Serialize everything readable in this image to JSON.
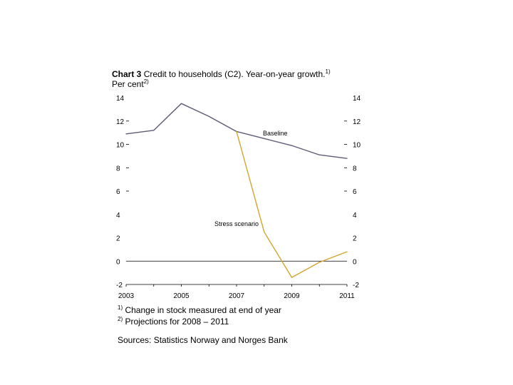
{
  "title": {
    "prefix": "Chart 3",
    "text": "Credit to households (C2). Year-on-year growth.",
    "footnote_ref": "1)"
  },
  "subtitle": {
    "text": "Per cent",
    "footnote_ref": "2)"
  },
  "chart_data": {
    "type": "line",
    "title": "Chart 3 Credit to households (C2). Year-on-year growth.",
    "ylabel": "Per cent",
    "xlabel": "",
    "ylim": [
      -2,
      14
    ],
    "xlim": [
      2003,
      2011
    ],
    "y_ticks": [
      14,
      12,
      10,
      8,
      6,
      4,
      2,
      0,
      -2
    ],
    "y_tick_labels": [
      "14",
      "12",
      "10",
      "8",
      "6",
      "4",
      "2",
      "0",
      "-2"
    ],
    "x_ticks": [
      2003,
      2005,
      2007,
      2009,
      2011
    ],
    "x_tick_labels": [
      "2003",
      "2005",
      "2007",
      "2009",
      "2011"
    ],
    "zero_line": true,
    "series": [
      {
        "name": "Baseline",
        "color": "#5c5c78",
        "x": [
          2003,
          2004,
          2005,
          2006,
          2007,
          2008,
          2009,
          2010,
          2011
        ],
        "values": [
          10.9,
          11.2,
          13.5,
          12.4,
          11.1,
          10.5,
          9.9,
          9.1,
          8.8
        ]
      },
      {
        "name": "Stress scenario",
        "color": "#d4a42a",
        "x": [
          2007,
          2008,
          2009,
          2010,
          2011
        ],
        "values": [
          11.1,
          2.5,
          -1.4,
          -0.1,
          0.8
        ]
      }
    ],
    "annotations": [
      {
        "text": "Baseline",
        "x": 2008.4,
        "y": 10.75
      },
      {
        "text": "Stress scenario",
        "x": 2007.0,
        "y": 3.0
      }
    ]
  },
  "notes": {
    "note1_ref": "1)",
    "note1": "Change in stock measured at end of year",
    "note2_ref": "2)",
    "note2": "Projections for 2008 – 2011",
    "source": "Sources: Statistics Norway and Norges Bank"
  }
}
